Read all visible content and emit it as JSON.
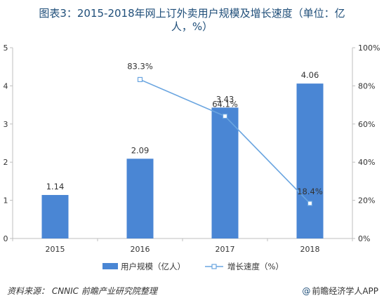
{
  "title": {
    "line1": "图表3：2015-2018年网上订外卖用户规模及增长速度（单位：亿",
    "line2": "人，%）"
  },
  "chart_data": {
    "type": "bar",
    "categories": [
      "2015",
      "2016",
      "2017",
      "2018"
    ],
    "series": [
      {
        "name": "用户规模（亿人）",
        "type": "bar",
        "axis": "left",
        "values": [
          1.14,
          2.09,
          3.43,
          4.06
        ],
        "labels": [
          "1.14",
          "2.09",
          "3.43",
          "4.06"
        ]
      },
      {
        "name": "增长速度（%）",
        "type": "line",
        "axis": "right",
        "values": [
          null,
          83.3,
          64.1,
          18.4
        ],
        "labels": [
          "",
          "83.3%",
          "64.1%",
          "18.4%"
        ]
      }
    ],
    "y_left": {
      "min": 0,
      "max": 5,
      "ticks": [
        "0",
        "1",
        "2",
        "3",
        "4",
        "5"
      ]
    },
    "y_right": {
      "min": 0,
      "max": 100,
      "ticks": [
        "0%",
        "20%",
        "40%",
        "60%",
        "80%",
        "100%"
      ]
    },
    "grid": false,
    "legend_placement": "bottom",
    "colors": {
      "bar": "#4a86d4",
      "line": "#6aa5e0",
      "marker_fill": "#ffffff"
    }
  },
  "footer": {
    "source": "资料来源：  CNNIC 前瞻产业研究院整理",
    "brand_at": "@",
    "brand": "前瞻经济学人APP"
  }
}
